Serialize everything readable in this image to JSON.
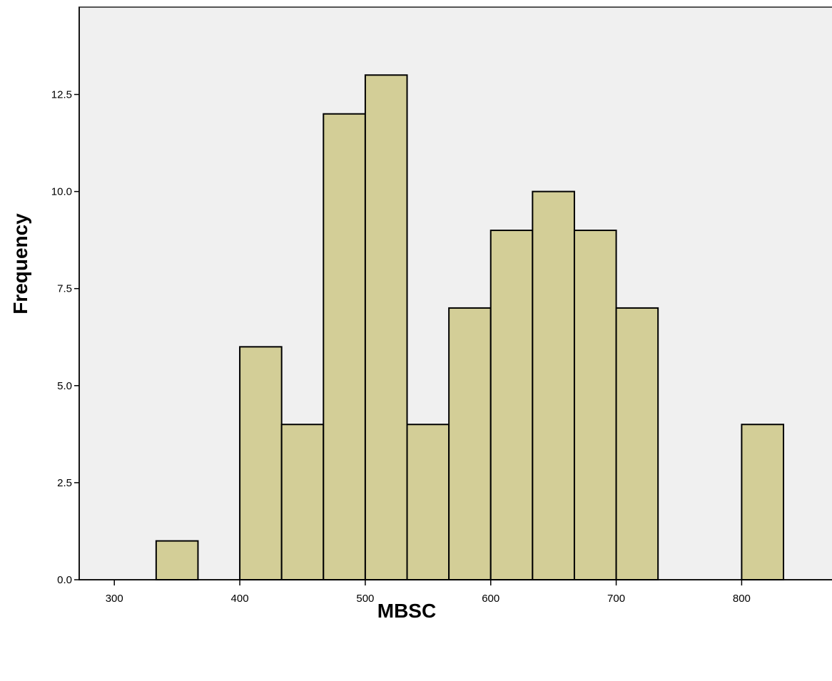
{
  "chart_data": {
    "type": "bar",
    "subtype": "histogram",
    "title": "",
    "xlabel": "MBSC",
    "ylabel": "Frequency",
    "bin_width": 33.33,
    "bins": [
      {
        "start": 333.33,
        "end": 366.67,
        "count": 1
      },
      {
        "start": 400.0,
        "end": 433.33,
        "count": 6
      },
      {
        "start": 433.33,
        "end": 466.67,
        "count": 4
      },
      {
        "start": 466.67,
        "end": 500.0,
        "count": 12
      },
      {
        "start": 500.0,
        "end": 533.33,
        "count": 13
      },
      {
        "start": 533.33,
        "end": 566.67,
        "count": 4
      },
      {
        "start": 566.67,
        "end": 600.0,
        "count": 7
      },
      {
        "start": 600.0,
        "end": 633.33,
        "count": 9
      },
      {
        "start": 633.33,
        "end": 666.67,
        "count": 10
      },
      {
        "start": 666.67,
        "end": 700.0,
        "count": 9
      },
      {
        "start": 700.0,
        "end": 733.33,
        "count": 7
      },
      {
        "start": 800.0,
        "end": 833.33,
        "count": 4
      }
    ],
    "xlim": [
      272,
      872
    ],
    "ylim": [
      0,
      14.75
    ],
    "xticks": [
      300,
      400,
      500,
      600,
      700,
      800
    ],
    "xtick_labels": [
      "300",
      "400",
      "500",
      "600",
      "700",
      "800"
    ],
    "yticks": [
      0,
      2.5,
      5,
      7.5,
      10,
      12.5
    ],
    "ytick_labels": [
      "0.0",
      "2.5",
      "5.0",
      "7.5",
      "10.0",
      "12.5"
    ],
    "grid": false,
    "colors": {
      "plot_background": "#f0f0f0",
      "bar_fill": "#d3ce97",
      "bar_stroke": "#000000"
    }
  }
}
